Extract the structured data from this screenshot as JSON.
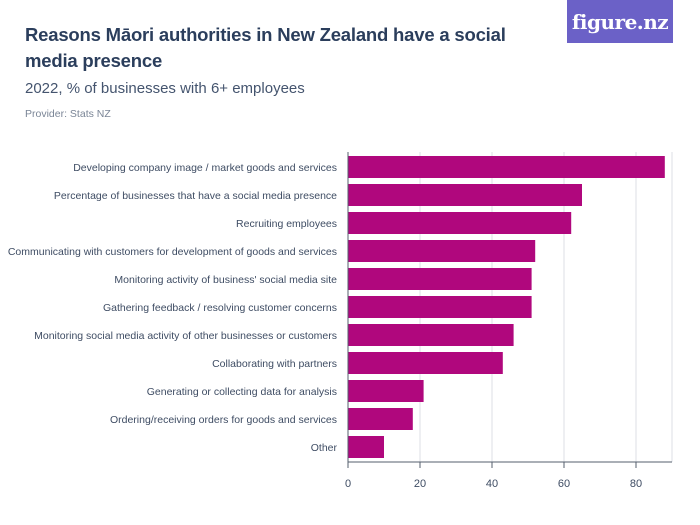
{
  "header": {
    "title": "Reasons Māori authorities in New Zealand have a social media presence",
    "subtitle": "2022, % of businesses with 6+ employees",
    "provider": "Provider: Stats NZ",
    "logo_text": "figure.nz"
  },
  "colors": {
    "bar": "#b0077d",
    "title": "#2b3e5c",
    "subtitle": "#44546e",
    "provider": "#7a8596",
    "label": "#3e4c63",
    "grid": "#dcdfe4",
    "axis": "#555f6e",
    "logo_bg": "#6b61c7"
  },
  "chart_data": {
    "type": "bar",
    "orientation": "horizontal",
    "categories": [
      "Developing company image / market goods and services",
      "Percentage of businesses that have a social media presence",
      "Recruiting employees",
      "Communicating with customers for development of goods and services",
      "Monitoring activity of business' social media site",
      "Gathering feedback / resolving customer concerns",
      "Monitoring social media activity of other businesses or customers",
      "Collaborating with partners",
      "Generating or collecting data for analysis",
      "Ordering/receiving orders for goods and services",
      "Other"
    ],
    "values": [
      88,
      65,
      62,
      52,
      51,
      51,
      46,
      43,
      21,
      18,
      10
    ],
    "xlim": [
      0,
      90
    ],
    "xticks": [
      0,
      20,
      40,
      60,
      80
    ],
    "grid": true,
    "legend": "none"
  }
}
